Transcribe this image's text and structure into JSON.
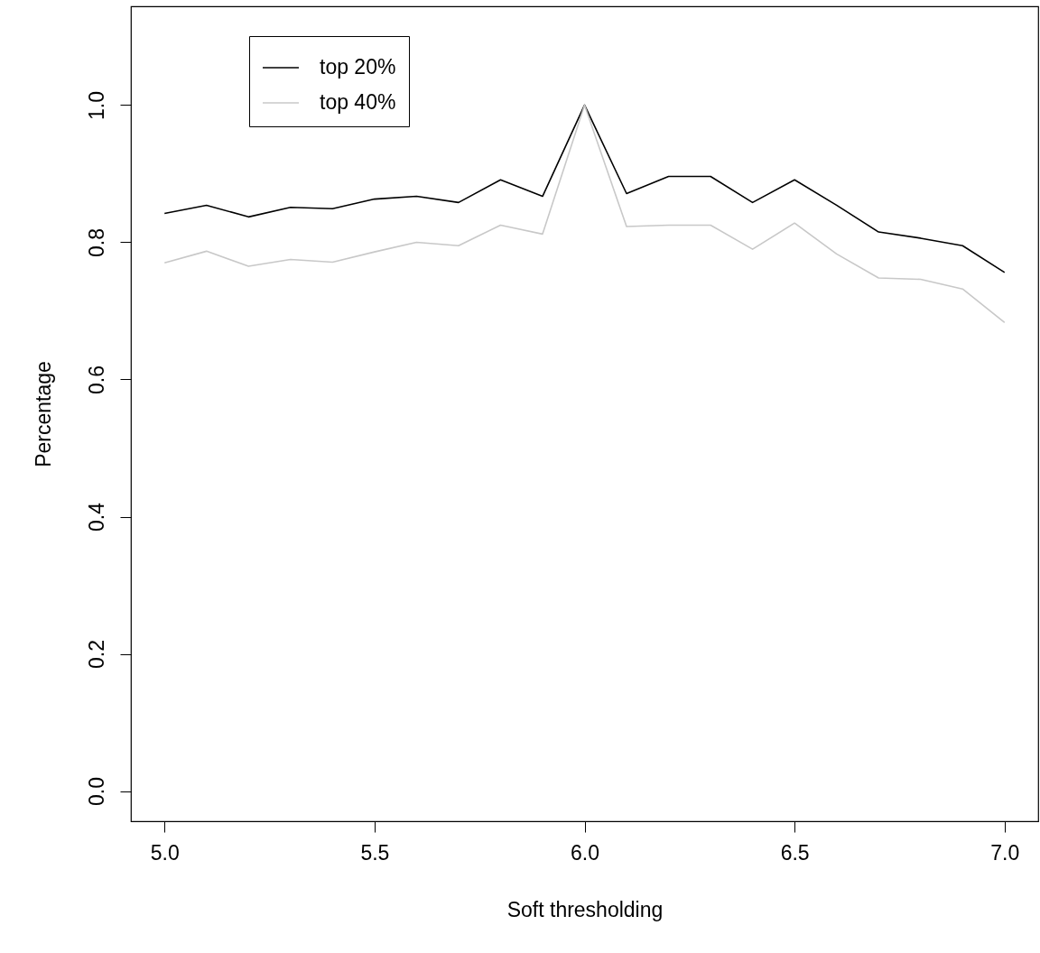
{
  "chart_data": {
    "type": "line",
    "xlabel": "Soft thresholding",
    "ylabel": "Percentage",
    "x": [
      5.0,
      5.1,
      5.2,
      5.3,
      5.4,
      5.5,
      5.6,
      5.7,
      5.8,
      5.9,
      6.0,
      6.1,
      6.2,
      6.3,
      6.4,
      6.5,
      6.6,
      6.7,
      6.8,
      6.9,
      7.0
    ],
    "series": [
      {
        "name": "top 20%",
        "color": "#000000",
        "values": [
          0.842,
          0.854,
          0.837,
          0.851,
          0.849,
          0.863,
          0.867,
          0.858,
          0.891,
          0.867,
          1.0,
          0.871,
          0.896,
          0.896,
          0.858,
          0.891,
          0.854,
          0.815,
          0.806,
          0.795,
          0.756
        ]
      },
      {
        "name": "top 40%",
        "color": "#c8c8c8",
        "values": [
          0.77,
          0.787,
          0.765,
          0.775,
          0.771,
          0.786,
          0.8,
          0.795,
          0.825,
          0.812,
          1.0,
          0.823,
          0.825,
          0.825,
          0.79,
          0.828,
          0.783,
          0.748,
          0.746,
          0.732,
          0.683
        ]
      }
    ],
    "xlim": [
      4.92,
      7.08
    ],
    "ylim": [
      -0.044,
      1.144
    ],
    "xticks": [
      {
        "value": 5,
        "label": "5.0"
      },
      5.5,
      {
        "value": 6,
        "label": "6.0"
      },
      6.5,
      {
        "value": 7,
        "label": "7.0"
      }
    ],
    "yticks": [
      {
        "value": 0,
        "label": "0.0"
      },
      0.2,
      0.4,
      0.6,
      0.8,
      {
        "value": 1,
        "label": "1.0"
      }
    ],
    "grid": false,
    "legend": "top left",
    "line_style": "solid",
    "marker": "none"
  }
}
